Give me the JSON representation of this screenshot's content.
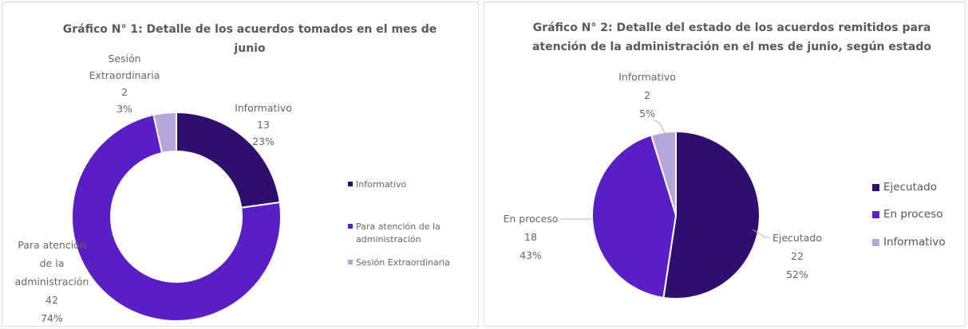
{
  "chart_data": [
    {
      "type": "pie",
      "style": "donut",
      "title": "Gráfico N° 1: Detalle de los acuerdos tomados en el mes de junio",
      "categories": [
        "Informativo",
        "Para atención de la administración",
        "Sesión Extraordinaria"
      ],
      "values": [
        13,
        42,
        2
      ],
      "percents": [
        "23%",
        "74%",
        "3%"
      ],
      "colors": [
        "#2e0f6e",
        "#5a1fc4",
        "#b3a6d8"
      ],
      "data_labels": [
        [
          "Informativo",
          "13",
          "23%"
        ],
        [
          "Para atención",
          "de la",
          "administración",
          "42",
          "74%"
        ],
        [
          "Sesión",
          "Extraordinaria",
          "2",
          "3%"
        ]
      ],
      "legend": {
        "position": "right",
        "entries": [
          "Informativo",
          "Para atención de la administración",
          "Sesión Extraordinaria"
        ]
      }
    },
    {
      "type": "pie",
      "title": "Gráfico N° 2: Detalle del  estado de los acuerdos remitidos para atención de la administración en el mes de junio, según estado",
      "categories": [
        "Ejecutado",
        "En proceso",
        "Informativo"
      ],
      "values": [
        22,
        18,
        2
      ],
      "percents": [
        "52%",
        "43%",
        "5%"
      ],
      "colors": [
        "#2e0f6e",
        "#5a1fc4",
        "#b3a6d8"
      ],
      "data_labels": [
        [
          "Ejecutado",
          "22",
          "52%"
        ],
        [
          "En proceso",
          "18",
          "43%"
        ],
        [
          "Informativo",
          "2",
          "5%"
        ]
      ],
      "legend": {
        "position": "right",
        "entries": [
          "Ejecutado",
          "En proceso",
          "Informativo"
        ]
      }
    }
  ]
}
